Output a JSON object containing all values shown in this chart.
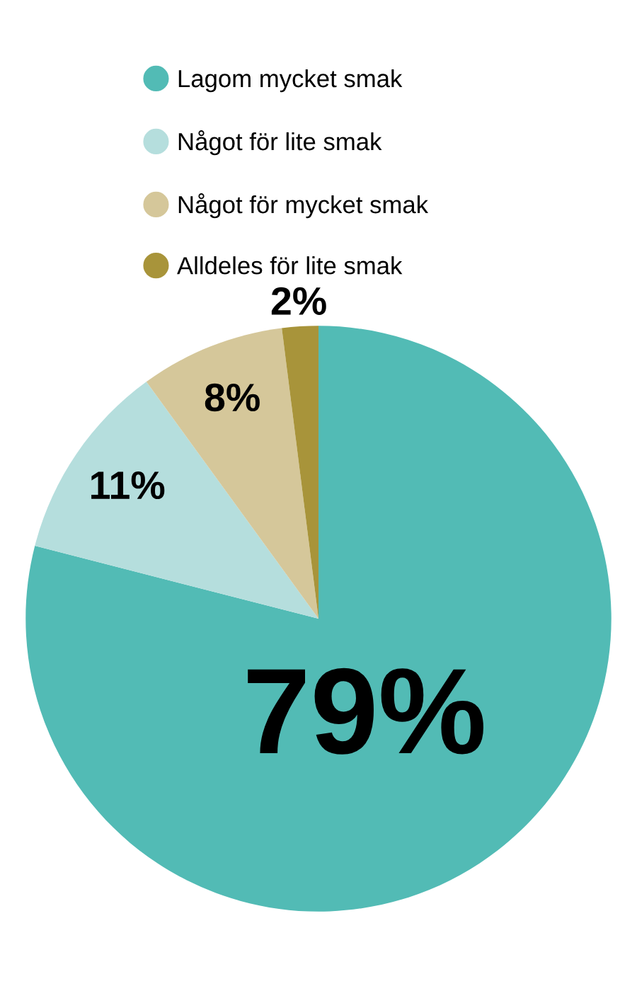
{
  "chart_data": {
    "type": "pie",
    "categories": [
      "Lagom mycket smak",
      "Något för lite smak",
      "Något för mycket smak",
      "Alldeles för lite smak"
    ],
    "values": [
      79,
      11,
      8,
      2
    ],
    "colors": [
      "#52bbb5",
      "#b5dedd",
      "#d5c79a",
      "#a8943a"
    ],
    "value_labels": [
      "79%",
      "11%",
      "8%",
      "2%"
    ],
    "legend": "top"
  }
}
